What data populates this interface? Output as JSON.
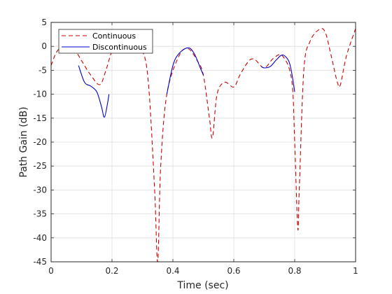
{
  "chart_data": {
    "type": "line",
    "title": "",
    "xlabel": "Time (sec)",
    "ylabel": "Path Gain (dB)",
    "xlim": [
      0,
      1
    ],
    "ylim": [
      -45,
      5
    ],
    "xticks": [
      0,
      0.2,
      0.4,
      0.6,
      0.8,
      1
    ],
    "xtick_labels": [
      "0",
      "0.2",
      "0.4",
      "0.6",
      "0.8",
      "1"
    ],
    "yticks": [
      5,
      0,
      -5,
      -10,
      -15,
      -20,
      -25,
      -30,
      -35,
      -40,
      -45
    ],
    "ytick_labels": [
      "5",
      "0",
      "-5",
      "-10",
      "-15",
      "-20",
      "-25",
      "-30",
      "-35",
      "-40",
      "-45"
    ],
    "grid": true,
    "legend_position": "top-left",
    "series": [
      {
        "name": "Continuous",
        "color": "#cc0000",
        "style": "dashed",
        "x": [
          0,
          0.02,
          0.05,
          0.08,
          0.1,
          0.13,
          0.16,
          0.18,
          0.2,
          0.22,
          0.26,
          0.3,
          0.32,
          0.34,
          0.35,
          0.36,
          0.38,
          0.42,
          0.45,
          0.48,
          0.5,
          0.52,
          0.53,
          0.545,
          0.57,
          0.6,
          0.62,
          0.65,
          0.67,
          0.7,
          0.73,
          0.76,
          0.79,
          0.8,
          0.81,
          0.815,
          0.83,
          0.85,
          0.88,
          0.9,
          0.92,
          0.94,
          0.95,
          0.97,
          1.0
        ],
        "y": [
          -4,
          -1,
          0.3,
          -1,
          -3,
          -6,
          -8,
          -5,
          -1,
          0.5,
          1,
          -1,
          -8,
          -30,
          -45,
          -25,
          -10,
          -2,
          -0.5,
          -3,
          -6,
          -15,
          -19,
          -10,
          -7.5,
          -8.5,
          -6,
          -3,
          -2.8,
          -4.5,
          -2.5,
          -2,
          -7,
          -20,
          -38,
          -30,
          -5,
          1,
          3.5,
          3,
          -2,
          -7.5,
          -8,
          -2,
          3.7
        ]
      },
      {
        "name": "Discontinuous",
        "color": "#0000cc",
        "style": "solid",
        "segments": [
          {
            "x": [
              0.09,
              0.11,
              0.13,
              0.15,
              0.165,
              0.175,
              0.185,
              0.19
            ],
            "y": [
              -4,
              -7.5,
              -8.3,
              -9.5,
              -12.5,
              -14.8,
              -12,
              -10
            ]
          },
          {
            "x": [
              0.38,
              0.4,
              0.42,
              0.45,
              0.47,
              0.49,
              0.5
            ],
            "y": [
              -10,
              -4,
              -1.5,
              -0.3,
              -1.5,
              -4.5,
              -6
            ]
          },
          {
            "x": [
              0.69,
              0.7,
              0.72,
              0.74,
              0.76,
              0.78,
              0.79,
              0.8
            ],
            "y": [
              -4.2,
              -4.5,
              -4.2,
              -2.8,
              -1.8,
              -3,
              -5.5,
              -9.5
            ]
          }
        ]
      }
    ]
  }
}
